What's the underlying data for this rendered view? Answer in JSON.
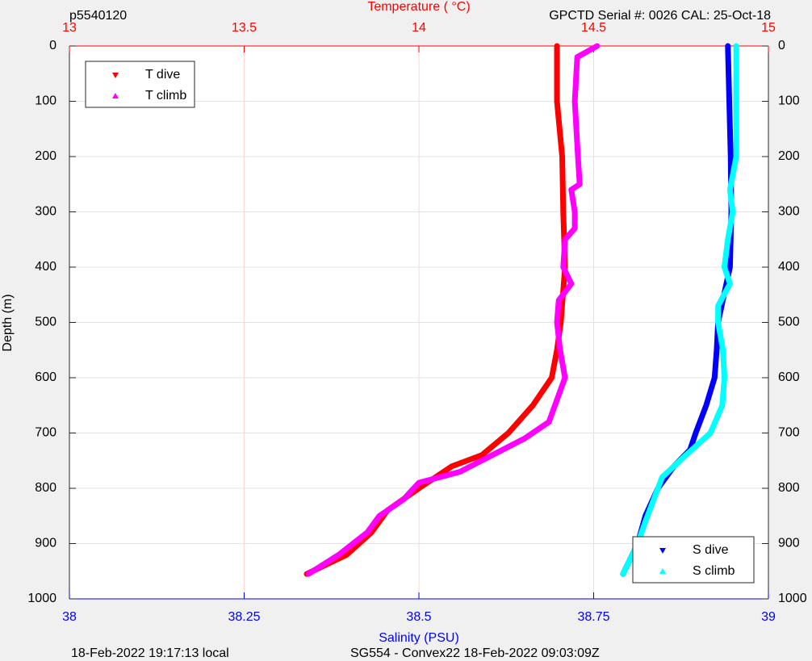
{
  "chart_data": {
    "type": "line",
    "title": "p5540120",
    "subtitle": "GPCTD Serial #: 0026 CAL: 25-Oct-18",
    "footer_left": "18-Feb-2022 19:17:13 local",
    "footer_right": "SG554 - Convex22 18-Feb-2022 09:03:09Z",
    "xlabel": "Salinity (PSU)",
    "x2label": "Temperature (    °C)",
    "ylabel": "Depth (m)",
    "xlim": [
      38,
      39
    ],
    "xticks": [
      38,
      38.25,
      38.5,
      38.75,
      39
    ],
    "xcolor": "#0000ff",
    "x2lim": [
      13,
      15
    ],
    "x2ticks": [
      13,
      13.5,
      14,
      14.5,
      15
    ],
    "x2color": "#ff0000",
    "ylim": [
      0,
      1000
    ],
    "yticks": [
      0,
      100,
      200,
      300,
      400,
      500,
      600,
      700,
      800,
      900,
      1000
    ],
    "y_reversed": true,
    "grid": true,
    "legend_loc": {
      "x2": "northwest",
      "x": "southeast"
    },
    "series": [
      {
        "name": "T dive",
        "color": "#ff0000",
        "axis": "x2",
        "marker": "down",
        "y": [
          0,
          100,
          200,
          300,
          400,
          500,
          550,
          600,
          650,
          700,
          740,
          760,
          800,
          840,
          880,
          920,
          955
        ],
        "values": [
          14.395,
          14.395,
          14.41,
          14.413,
          14.418,
          14.406,
          14.395,
          14.38,
          14.326,
          14.256,
          14.18,
          14.095,
          14.0,
          13.91,
          13.864,
          13.794,
          13.679
        ]
      },
      {
        "name": "T climb",
        "color": "#ff00ff",
        "axis": "x2",
        "marker": "up",
        "y": [
          0,
          20,
          100,
          200,
          250,
          260,
          300,
          330,
          350,
          400,
          430,
          460,
          500,
          550,
          600,
          640,
          680,
          710,
          740,
          770,
          790,
          820,
          850,
          880,
          920,
          955
        ],
        "values": [
          14.51,
          14.453,
          14.446,
          14.455,
          14.46,
          14.436,
          14.446,
          14.446,
          14.418,
          14.413,
          14.436,
          14.4,
          14.395,
          14.404,
          14.418,
          14.395,
          14.372,
          14.302,
          14.21,
          14.118,
          14.0,
          13.956,
          13.887,
          13.852,
          13.771,
          13.684
        ]
      },
      {
        "name": "S dive",
        "color": "#0000ff",
        "axis": "x",
        "marker": "down",
        "y": [
          0,
          200,
          300,
          400,
          500,
          550,
          600,
          650,
          700,
          730,
          760,
          800,
          850,
          900,
          955
        ],
        "values": [
          38.942,
          38.946,
          38.947,
          38.945,
          38.928,
          38.926,
          38.923,
          38.911,
          38.896,
          38.888,
          38.865,
          38.842,
          38.824,
          38.813,
          38.792
        ]
      },
      {
        "name": "S climb",
        "color": "#00ffff",
        "axis": "x",
        "marker": "up",
        "y": [
          0,
          200,
          260,
          300,
          350,
          400,
          430,
          470,
          500,
          550,
          600,
          650,
          700,
          740,
          780,
          820,
          860,
          900,
          955
        ],
        "values": [
          38.954,
          38.954,
          38.945,
          38.949,
          38.942,
          38.937,
          38.945,
          38.928,
          38.928,
          38.935,
          38.937,
          38.934,
          38.917,
          38.882,
          38.848,
          38.836,
          38.824,
          38.813,
          38.792
        ]
      }
    ]
  }
}
